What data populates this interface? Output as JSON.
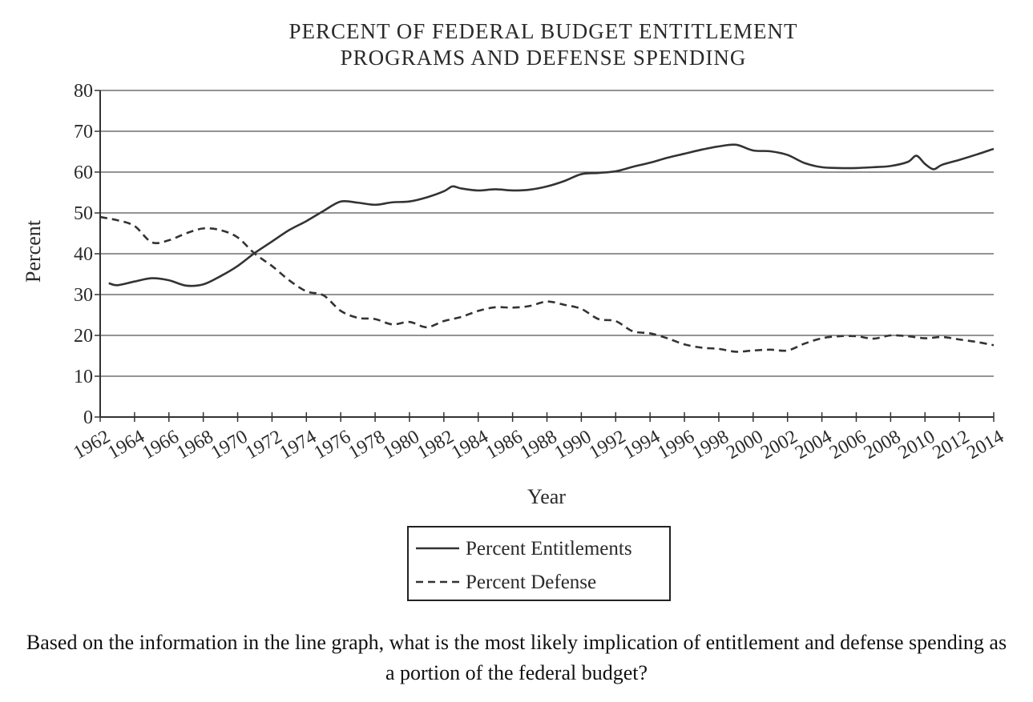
{
  "question": "Based on the information in the line graph, what is the most likely implication of entitlement and defense spending as a portion of the federal budget?",
  "chart_data": {
    "type": "line",
    "title": [
      "PERCENT OF FEDERAL BUDGET ENTITLEMENT",
      "PROGRAMS AND DEFENSE SPENDING"
    ],
    "xlabel": "Year",
    "ylabel": "Percent",
    "xlim": [
      1962,
      2014
    ],
    "ylim": [
      0,
      80
    ],
    "x_ticks": [
      1962,
      1964,
      1966,
      1968,
      1970,
      1972,
      1974,
      1976,
      1978,
      1980,
      1982,
      1984,
      1986,
      1988,
      1990,
      1992,
      1994,
      1996,
      1998,
      2000,
      2002,
      2004,
      2006,
      2008,
      2010,
      2012,
      2014
    ],
    "y_ticks": [
      0,
      10,
      20,
      30,
      40,
      50,
      60,
      70,
      80
    ],
    "grid": "horizontal",
    "legend_position": "bottom-center",
    "line_color": "#333333",
    "series": [
      {
        "name": "Percent Entitlements",
        "style": "solid",
        "x": [
          1962.5,
          1963,
          1964,
          1965,
          1966,
          1967,
          1968,
          1969,
          1970,
          1971,
          1972,
          1973,
          1974,
          1975,
          1976,
          1977,
          1978,
          1979,
          1980,
          1981,
          1982,
          1982.5,
          1983,
          1984,
          1985,
          1986,
          1987,
          1988,
          1989,
          1990,
          1991,
          1992,
          1993,
          1994,
          1995,
          1996,
          1997,
          1998,
          1999,
          2000,
          2001,
          2002,
          2003,
          2004,
          2005,
          2006,
          2007,
          2008,
          2009,
          2009.5,
          2010,
          2010.5,
          2011,
          2012,
          2013,
          2014
        ],
        "y": [
          32.8,
          32.3,
          33.2,
          34.0,
          33.5,
          32.2,
          32.5,
          34.5,
          37.0,
          40.2,
          43.0,
          45.8,
          48.0,
          50.5,
          52.8,
          52.5,
          52.0,
          52.6,
          52.8,
          53.8,
          55.3,
          56.5,
          56.0,
          55.5,
          55.8,
          55.5,
          55.7,
          56.5,
          57.8,
          59.5,
          59.8,
          60.2,
          61.3,
          62.3,
          63.5,
          64.5,
          65.5,
          66.3,
          66.7,
          65.3,
          65.1,
          64.2,
          62.2,
          61.2,
          61.0,
          61.0,
          61.2,
          61.5,
          62.5,
          64.0,
          62.0,
          60.7,
          61.8,
          63.0,
          64.3,
          65.7
        ]
      },
      {
        "name": "Percent Defense",
        "style": "dashed",
        "x": [
          1962,
          1963,
          1964,
          1965,
          1966,
          1967,
          1968,
          1969,
          1970,
          1971,
          1972,
          1973,
          1974,
          1975,
          1976,
          1977,
          1978,
          1979,
          1980,
          1981,
          1982,
          1983,
          1984,
          1985,
          1986,
          1987,
          1988,
          1989,
          1990,
          1991,
          1992,
          1993,
          1994,
          1995,
          1996,
          1997,
          1998,
          1999,
          2000,
          2001,
          2002,
          2003,
          2004,
          2005,
          2006,
          2007,
          2008,
          2009,
          2010,
          2011,
          2012,
          2013,
          2014
        ],
        "y": [
          49.0,
          48.2,
          46.8,
          42.8,
          43.3,
          45.0,
          46.2,
          45.8,
          44.0,
          40.0,
          37.0,
          33.5,
          30.8,
          29.8,
          26.0,
          24.3,
          24.0,
          22.7,
          23.3,
          22.0,
          23.5,
          24.5,
          26.0,
          26.9,
          26.8,
          27.2,
          28.3,
          27.5,
          26.5,
          24.0,
          23.5,
          21.0,
          20.5,
          19.3,
          17.8,
          17.0,
          16.7,
          16.0,
          16.3,
          16.5,
          16.3,
          18.0,
          19.3,
          19.8,
          19.8,
          19.2,
          20.0,
          19.8,
          19.3,
          19.6,
          19.0,
          18.4,
          17.6
        ]
      }
    ]
  }
}
